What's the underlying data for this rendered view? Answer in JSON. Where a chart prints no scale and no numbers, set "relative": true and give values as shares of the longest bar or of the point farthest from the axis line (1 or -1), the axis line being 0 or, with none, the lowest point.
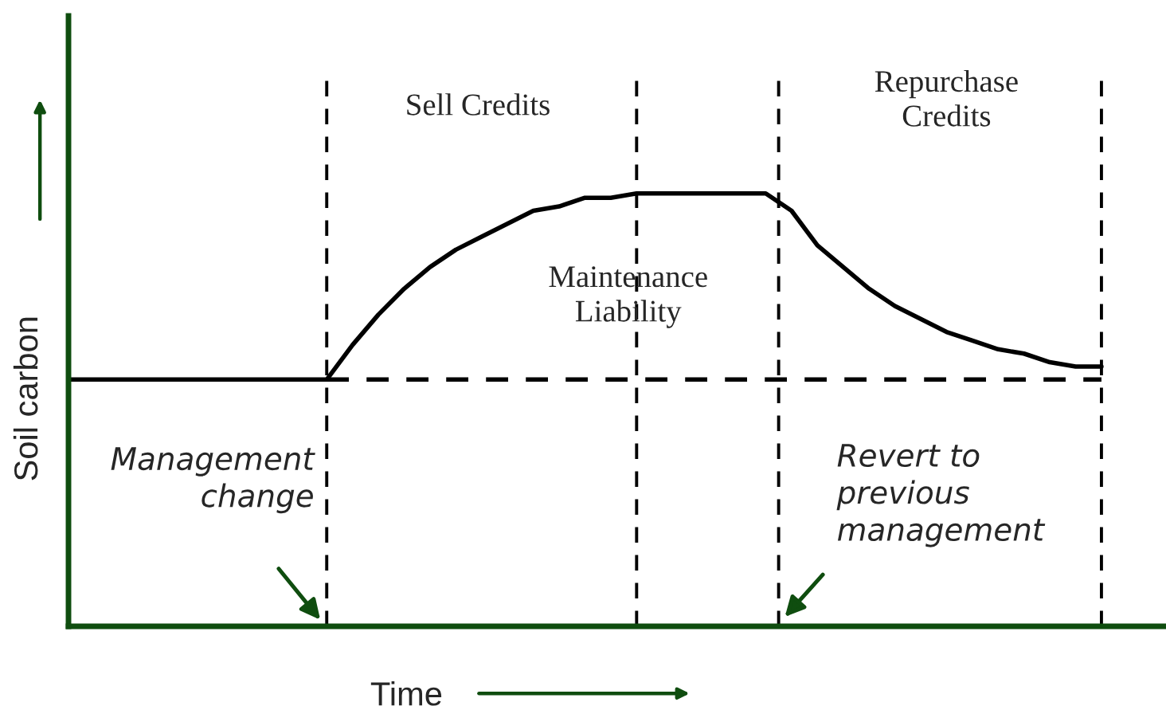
{
  "chart_data": {
    "type": "line",
    "relative": true,
    "xlabel": "Time",
    "ylabel": "Soil carbon",
    "categories": [
      null,
      null,
      null,
      null,
      null,
      null,
      null,
      null,
      null,
      null,
      null,
      null,
      null,
      null,
      null,
      null,
      null,
      null,
      null,
      null,
      null,
      null,
      null,
      null,
      null,
      null,
      null,
      null,
      null,
      null,
      null,
      null,
      null,
      null,
      null,
      null,
      null,
      null,
      null,
      null,
      null
    ],
    "series": [
      {
        "color": "#000000",
        "line_style": "solid",
        "values": [
          0.57,
          0.57,
          0.57,
          0.57,
          0.57,
          0.57,
          0.57,
          0.57,
          0.57,
          0.57,
          0.57,
          0.65,
          0.72,
          0.78,
          0.83,
          0.87,
          0.9,
          0.93,
          0.96,
          0.97,
          0.99,
          0.99,
          1.0,
          1.0,
          1.0,
          1.0,
          1.0,
          1.0,
          0.96,
          0.88,
          0.83,
          0.78,
          0.74,
          0.71,
          0.68,
          0.66,
          0.64,
          0.63,
          0.61,
          0.6,
          0.6
        ]
      },
      {
        "color": "#000000",
        "line_style": "dashed",
        "values": [
          null,
          null,
          null,
          null,
          null,
          null,
          null,
          null,
          null,
          null,
          0.57,
          0.57,
          0.57,
          0.57,
          0.57,
          0.57,
          0.57,
          0.57,
          0.57,
          0.57,
          0.57,
          0.57,
          0.57,
          0.57,
          0.57,
          0.57,
          0.57,
          0.57,
          0.57,
          0.57,
          0.57,
          0.57,
          0.57,
          0.57,
          0.57,
          0.57,
          0.57,
          0.57,
          0.57,
          0.57,
          0.57
        ]
      }
    ],
    "annotations": [
      "Sell Credits",
      "Repurchase\nCredits",
      "Maintenance\nLiability",
      "Management\nchange",
      "Revert to\nprevious\nmanagement"
    ],
    "legend": false
  }
}
